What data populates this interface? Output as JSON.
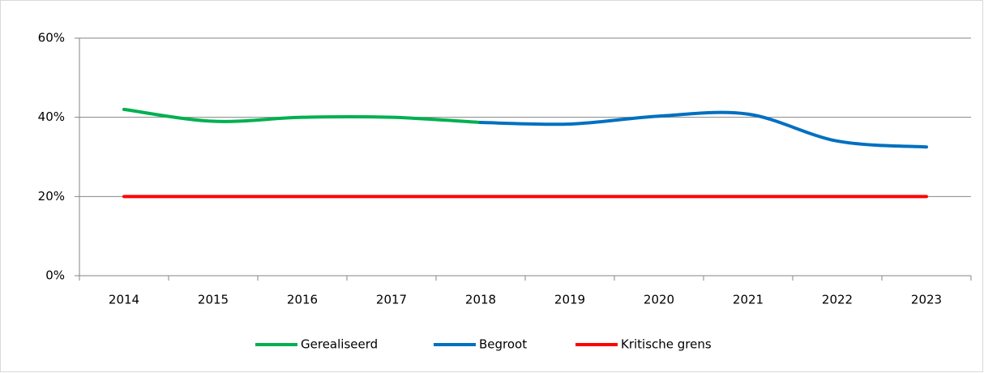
{
  "chart_data": {
    "type": "line",
    "categories": [
      "2014",
      "2015",
      "2016",
      "2017",
      "2018",
      "2019",
      "2020",
      "2021",
      "2022",
      "2023"
    ],
    "series": [
      {
        "name": "Gerealiseerd",
        "color": "#00b050",
        "values": [
          42,
          39,
          40,
          40,
          38.7,
          null,
          null,
          null,
          null,
          null
        ]
      },
      {
        "name": "Begroot",
        "color": "#0070c0",
        "values": [
          null,
          null,
          null,
          null,
          38.7,
          38.3,
          40.3,
          40.8,
          34,
          32.5
        ]
      },
      {
        "name": "Kritische grens",
        "color": "#ff0000",
        "values": [
          20,
          20,
          20,
          20,
          20,
          20,
          20,
          20,
          20,
          20
        ]
      }
    ],
    "ylim": [
      0,
      60
    ],
    "yticks": [
      {
        "value": 0,
        "label": "0%"
      },
      {
        "value": 20,
        "label": "20%"
      },
      {
        "value": 40,
        "label": "40%"
      },
      {
        "value": 60,
        "label": "60%"
      }
    ],
    "grid": true,
    "legend": "bottom"
  }
}
